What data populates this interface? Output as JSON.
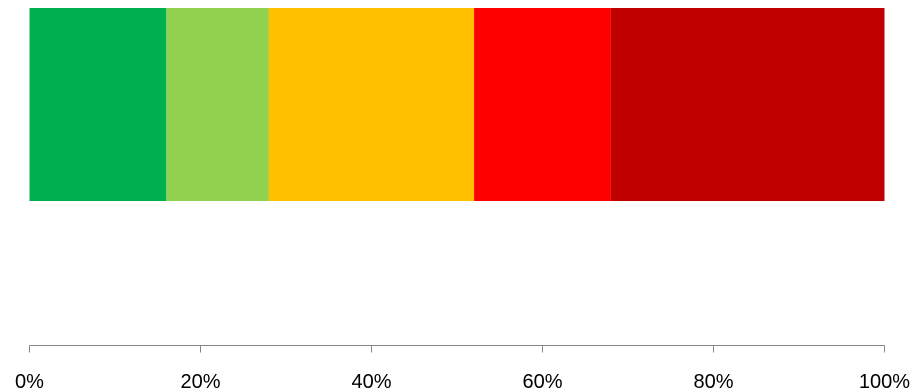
{
  "chart_data": {
    "type": "bar",
    "orientation": "horizontal",
    "stacked": true,
    "normalized_percent": true,
    "title": "",
    "xlabel": "",
    "ylabel": "",
    "xlim": [
      0,
      100
    ],
    "x_ticks": [
      0,
      20,
      40,
      60,
      80,
      100
    ],
    "x_tick_labels": [
      "0%",
      "20%",
      "40%",
      "60%",
      "80%",
      "100%"
    ],
    "grid": false,
    "legend": "none",
    "categories": [
      ""
    ],
    "series": [
      {
        "values": [
          16
        ],
        "color": "#00B050"
      },
      {
        "values": [
          12
        ],
        "color": "#92D050"
      },
      {
        "values": [
          24
        ],
        "color": "#FFC000"
      },
      {
        "values": [
          16
        ],
        "color": "#FF0000"
      },
      {
        "values": [
          32
        ],
        "color": "#C00000"
      }
    ]
  }
}
